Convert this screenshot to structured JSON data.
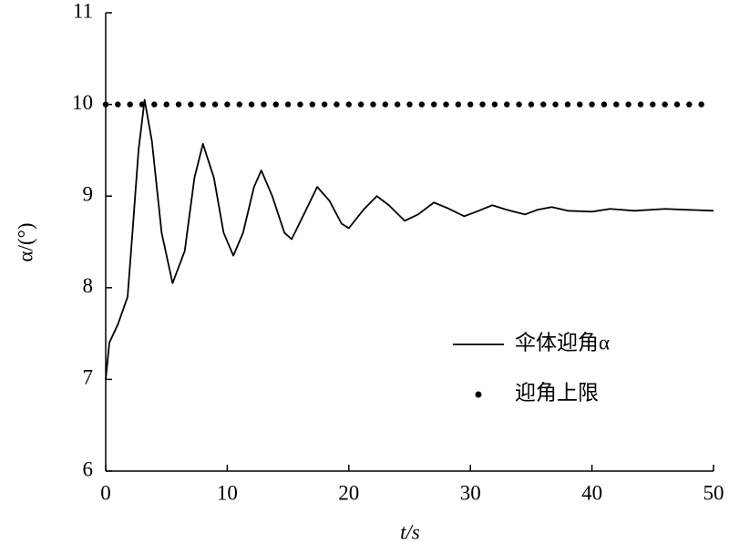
{
  "chart_data": {
    "type": "line",
    "xlabel": "t/s",
    "ylabel": "α/(°)",
    "xlim": [
      0,
      50
    ],
    "xticks": [
      0,
      10,
      20,
      30,
      40,
      50
    ],
    "ylim": [
      6,
      11
    ],
    "yticks": [
      6,
      7,
      8,
      9,
      10,
      11
    ],
    "legend": "right",
    "series": [
      {
        "name": "伞体迎角α",
        "color": "#000000",
        "style": "solid",
        "x": [
          0,
          0.3,
          1,
          1.8,
          2.2,
          2.7,
          3.2,
          3.8,
          4.6,
          5.5,
          6.5,
          7.3,
          8.0,
          8.9,
          9.7,
          10.5,
          11.3,
          12.2,
          12.8,
          13.7,
          14.7,
          15.3,
          16.3,
          17.4,
          18.4,
          19.4,
          20,
          21.2,
          22.3,
          23.3,
          24.6,
          25.7,
          27,
          28.1,
          29.5,
          30.5,
          31.8,
          33,
          34.5,
          35.5,
          36.7,
          38,
          40,
          41.5,
          43.5,
          46,
          48,
          50
        ],
        "values": [
          7.0,
          7.4,
          7.6,
          7.9,
          8.6,
          9.5,
          10.05,
          9.6,
          8.6,
          8.05,
          8.4,
          9.2,
          9.57,
          9.2,
          8.6,
          8.35,
          8.6,
          9.1,
          9.28,
          9.0,
          8.6,
          8.53,
          8.8,
          9.1,
          8.95,
          8.7,
          8.65,
          8.85,
          9.0,
          8.9,
          8.73,
          8.8,
          8.93,
          8.87,
          8.78,
          8.83,
          8.9,
          8.85,
          8.8,
          8.85,
          8.88,
          8.84,
          8.83,
          8.86,
          8.84,
          8.86,
          8.85,
          8.84
        ]
      },
      {
        "name": "迎角上限",
        "color": "#000000",
        "style": "dots",
        "x": [
          0,
          1,
          2,
          3,
          4,
          5,
          6,
          7,
          8,
          9,
          10,
          11,
          12,
          13,
          14,
          15,
          16,
          17,
          18,
          19,
          20,
          21,
          22,
          23,
          24,
          25,
          26,
          27,
          28,
          29,
          30,
          31,
          32,
          33,
          34,
          35,
          36,
          37,
          38,
          39,
          40,
          41,
          42,
          43,
          44,
          45,
          46,
          47,
          48,
          49
        ],
        "values": [
          10,
          10,
          10,
          10,
          10,
          10,
          10,
          10,
          10,
          10,
          10,
          10,
          10,
          10,
          10,
          10,
          10,
          10,
          10,
          10,
          10,
          10,
          10,
          10,
          10,
          10,
          10,
          10,
          10,
          10,
          10,
          10,
          10,
          10,
          10,
          10,
          10,
          10,
          10,
          10,
          10,
          10,
          10,
          10,
          10,
          10,
          10,
          10,
          10,
          10
        ]
      }
    ]
  }
}
